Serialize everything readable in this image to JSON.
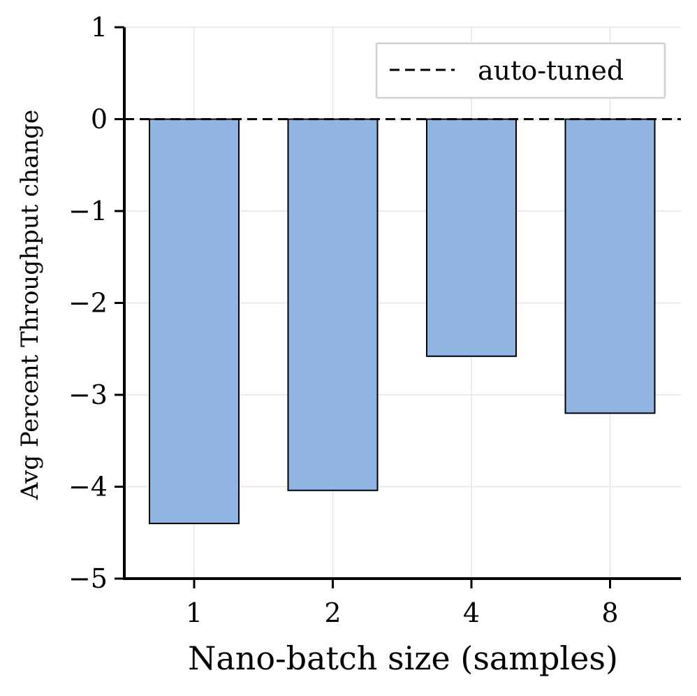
{
  "chart_data": {
    "type": "bar",
    "categories": [
      "1",
      "2",
      "4",
      "8"
    ],
    "values": [
      -4.4,
      -4.04,
      -2.58,
      -3.2
    ],
    "title": "",
    "xlabel": "Nano-batch size (samples)",
    "ylabel": "Avg Percent Throughput change",
    "ylim": [
      -5,
      1
    ],
    "yticks": [
      1,
      0,
      -1,
      -2,
      -3,
      -4,
      -5
    ],
    "ytick_labels": [
      "1",
      "0",
      "−1",
      "−2",
      "−3",
      "−4",
      "−5"
    ],
    "grid": true,
    "reference_line": {
      "y": 0,
      "style": "dashed",
      "label": "auto-tuned"
    },
    "legend": {
      "position": "top-right",
      "entries": [
        "auto-tuned"
      ]
    },
    "colors": {
      "bar_fill": "#91b5e2",
      "bar_edge": "#000000",
      "grid": "#e6e6e6",
      "reference_line": "#000000"
    }
  }
}
